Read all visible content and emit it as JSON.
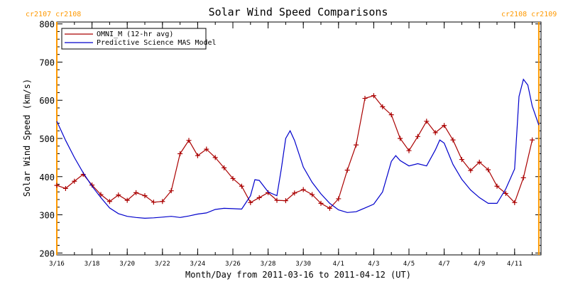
{
  "chart_data": {
    "type": "line",
    "title": "Solar Wind Speed Comparisons",
    "xlabel": "Month/Day from 2011-03-16 to 2011-04-12 (UT)",
    "ylabel": "Solar Wind Speed (km/s)",
    "xlim": [
      "2011-03-16",
      "2011-04-12 12:00"
    ],
    "ylim": [
      195,
      805
    ],
    "y_ticks": [
      200,
      300,
      400,
      500,
      600,
      700,
      800
    ],
    "x_ticks": [
      {
        "date": "2011-03-16",
        "label": "3/16"
      },
      {
        "date": "2011-03-18",
        "label": "3/18"
      },
      {
        "date": "2011-03-20",
        "label": "3/20"
      },
      {
        "date": "2011-03-22",
        "label": "3/22"
      },
      {
        "date": "2011-03-24",
        "label": "3/24"
      },
      {
        "date": "2011-03-26",
        "label": "3/26"
      },
      {
        "date": "2011-03-28",
        "label": "3/28"
      },
      {
        "date": "2011-03-30",
        "label": "3/30"
      },
      {
        "date": "2011-04-01",
        "label": "4/1"
      },
      {
        "date": "2011-04-03",
        "label": "4/3"
      },
      {
        "date": "2011-04-05",
        "label": "4/5"
      },
      {
        "date": "2011-04-07",
        "label": "4/7"
      },
      {
        "date": "2011-04-09",
        "label": "4/9"
      },
      {
        "date": "2011-04-11",
        "label": "4/11"
      }
    ],
    "legend_position": "top-left",
    "carrington_markers": [
      {
        "date": "2011-03-16",
        "label": "cr2107 cr2108",
        "position": "top-left",
        "color": "#ff9900"
      },
      {
        "date": "2011-04-12 09:00",
        "label": "cr2108 cr2109",
        "position": "top-right",
        "color": "#ff9900"
      }
    ],
    "series": [
      {
        "name": "OMNI_M (12-hr avg)",
        "color": "#aa0000",
        "marker": "+",
        "points": [
          [
            "2011-03-16 00:00",
            377
          ],
          [
            "2011-03-16 12:00",
            369
          ],
          [
            "2011-03-17 00:00",
            388
          ],
          [
            "2011-03-17 12:00",
            406
          ],
          [
            "2011-03-18 00:00",
            378
          ],
          [
            "2011-03-18 12:00",
            353
          ],
          [
            "2011-03-19 00:00",
            335
          ],
          [
            "2011-03-19 12:00",
            352
          ],
          [
            "2011-03-20 00:00",
            338
          ],
          [
            "2011-03-20 12:00",
            358
          ],
          [
            "2011-03-21 00:00",
            350
          ],
          [
            "2011-03-21 12:00",
            333
          ],
          [
            "2011-03-22 00:00",
            335
          ],
          [
            "2011-03-22 12:00",
            363
          ],
          [
            "2011-03-23 00:00",
            460
          ],
          [
            "2011-03-23 12:00",
            495
          ],
          [
            "2011-03-24 00:00",
            455
          ],
          [
            "2011-03-24 12:00",
            472
          ],
          [
            "2011-03-25 00:00",
            450
          ],
          [
            "2011-03-25 12:00",
            423
          ],
          [
            "2011-03-26 00:00",
            395
          ],
          [
            "2011-03-26 12:00",
            375
          ],
          [
            "2011-03-27 00:00",
            332
          ],
          [
            "2011-03-27 12:00",
            345
          ],
          [
            "2011-03-28 00:00",
            358
          ],
          [
            "2011-03-28 12:00",
            338
          ],
          [
            "2011-03-29 00:00",
            337
          ],
          [
            "2011-03-29 12:00",
            357
          ],
          [
            "2011-03-30 00:00",
            366
          ],
          [
            "2011-03-30 12:00",
            353
          ],
          [
            "2011-03-31 00:00",
            330
          ],
          [
            "2011-03-31 12:00",
            317
          ],
          [
            "2011-04-01 00:00",
            342
          ],
          [
            "2011-04-01 12:00",
            417
          ],
          [
            "2011-04-02 00:00",
            483
          ],
          [
            "2011-04-02 12:00",
            605
          ],
          [
            "2011-04-03 00:00",
            612
          ],
          [
            "2011-04-03 12:00",
            583
          ],
          [
            "2011-04-04 00:00",
            562
          ],
          [
            "2011-04-04 12:00",
            500
          ],
          [
            "2011-04-05 00:00",
            468
          ],
          [
            "2011-04-05 12:00",
            505
          ],
          [
            "2011-04-06 00:00",
            545
          ],
          [
            "2011-04-06 12:00",
            515
          ],
          [
            "2011-04-07 00:00",
            534
          ],
          [
            "2011-04-07 12:00",
            496
          ],
          [
            "2011-04-08 00:00",
            445
          ],
          [
            "2011-04-08 12:00",
            416
          ],
          [
            "2011-04-09 00:00",
            438
          ],
          [
            "2011-04-09 12:00",
            418
          ],
          [
            "2011-04-10 00:00",
            375
          ],
          [
            "2011-04-10 12:00",
            356
          ],
          [
            "2011-04-11 00:00",
            332
          ],
          [
            "2011-04-11 12:00",
            397
          ],
          [
            "2011-04-12 00:00",
            496
          ]
        ]
      },
      {
        "name": "Predictive Science MAS Model",
        "color": "#0000cc",
        "marker": "",
        "points": [
          [
            "2011-03-16 00:00",
            545
          ],
          [
            "2011-03-16 12:00",
            495
          ],
          [
            "2011-03-17 00:00",
            450
          ],
          [
            "2011-03-17 12:00",
            410
          ],
          [
            "2011-03-18 00:00",
            375
          ],
          [
            "2011-03-18 12:00",
            345
          ],
          [
            "2011-03-19 00:00",
            318
          ],
          [
            "2011-03-19 12:00",
            303
          ],
          [
            "2011-03-20 00:00",
            296
          ],
          [
            "2011-03-20 12:00",
            293
          ],
          [
            "2011-03-21 00:00",
            291
          ],
          [
            "2011-03-21 12:00",
            292
          ],
          [
            "2011-03-22 00:00",
            294
          ],
          [
            "2011-03-22 12:00",
            296
          ],
          [
            "2011-03-23 00:00",
            293
          ],
          [
            "2011-03-23 12:00",
            297
          ],
          [
            "2011-03-24 00:00",
            302
          ],
          [
            "2011-03-24 12:00",
            305
          ],
          [
            "2011-03-25 00:00",
            314
          ],
          [
            "2011-03-25 12:00",
            317
          ],
          [
            "2011-03-26 00:00",
            316
          ],
          [
            "2011-03-26 12:00",
            315
          ],
          [
            "2011-03-27 00:00",
            350
          ],
          [
            "2011-03-27 06:00",
            392
          ],
          [
            "2011-03-27 12:00",
            390
          ],
          [
            "2011-03-28 00:00",
            360
          ],
          [
            "2011-03-28 12:00",
            350
          ],
          [
            "2011-03-28 18:00",
            420
          ],
          [
            "2011-03-29 00:00",
            500
          ],
          [
            "2011-03-29 06:00",
            520
          ],
          [
            "2011-03-29 12:00",
            495
          ],
          [
            "2011-03-30 00:00",
            425
          ],
          [
            "2011-03-30 12:00",
            385
          ],
          [
            "2011-03-31 00:00",
            355
          ],
          [
            "2011-03-31 12:00",
            330
          ],
          [
            "2011-04-01 00:00",
            313
          ],
          [
            "2011-04-01 12:00",
            306
          ],
          [
            "2011-04-02 00:00",
            308
          ],
          [
            "2011-04-02 12:00",
            318
          ],
          [
            "2011-04-03 00:00",
            328
          ],
          [
            "2011-04-03 12:00",
            360
          ],
          [
            "2011-04-04 00:00",
            440
          ],
          [
            "2011-04-04 06:00",
            455
          ],
          [
            "2011-04-04 12:00",
            442
          ],
          [
            "2011-04-05 00:00",
            428
          ],
          [
            "2011-04-05 12:00",
            434
          ],
          [
            "2011-04-06 00:00",
            428
          ],
          [
            "2011-04-06 12:00",
            470
          ],
          [
            "2011-04-06 18:00",
            496
          ],
          [
            "2011-04-07 00:00",
            488
          ],
          [
            "2011-04-07 12:00",
            432
          ],
          [
            "2011-04-08 00:00",
            393
          ],
          [
            "2011-04-08 12:00",
            365
          ],
          [
            "2011-04-09 00:00",
            345
          ],
          [
            "2011-04-09 12:00",
            330
          ],
          [
            "2011-04-10 00:00",
            330
          ],
          [
            "2011-04-10 12:00",
            368
          ],
          [
            "2011-04-11 00:00",
            420
          ],
          [
            "2011-04-11 06:00",
            610
          ],
          [
            "2011-04-11 12:00",
            655
          ],
          [
            "2011-04-11 18:00",
            640
          ],
          [
            "2011-04-12 00:00",
            585
          ],
          [
            "2011-04-12 09:00",
            535
          ]
        ]
      }
    ]
  }
}
